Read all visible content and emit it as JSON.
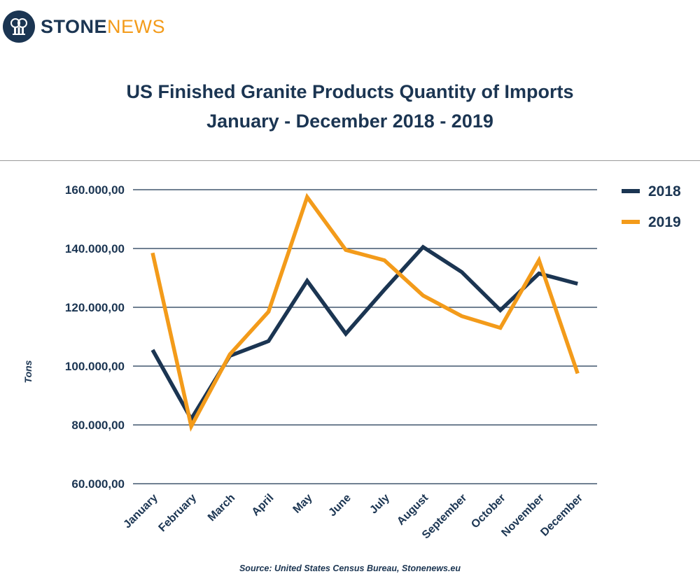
{
  "brand": {
    "logo_part1": "STONE",
    "logo_part2": "NEWS",
    "colors": {
      "navy": "#1b3552",
      "orange": "#f39b1a"
    }
  },
  "header": {
    "title_line1": "US Finished Granite Products Quantity of Imports",
    "title_line2": "January - December 2018 - 2019"
  },
  "footer": {
    "source": "Source: United States Census Bureau, Stonenews.eu"
  },
  "chart_data": {
    "type": "line",
    "title": "US Finished Granite Products Quantity of Imports January - December 2018 - 2019",
    "xlabel": "",
    "ylabel": "Tons",
    "categories": [
      "January",
      "February",
      "March",
      "April",
      "May",
      "June",
      "July",
      "August",
      "September",
      "October",
      "November",
      "December"
    ],
    "ylim": [
      60000,
      160000
    ],
    "yticks": [
      60000,
      80000,
      100000,
      120000,
      140000,
      160000
    ],
    "ytick_labels": [
      "60.000,00",
      "80.000,00",
      "100.000,00",
      "120.000,00",
      "140.000,00",
      "160.000,00"
    ],
    "grid": true,
    "legend_position": "top-right",
    "series": [
      {
        "name": "2018",
        "color": "#1b3552",
        "values": [
          105500,
          82000,
          103500,
          108500,
          129000,
          111000,
          126000,
          140500,
          132000,
          119000,
          131500,
          128000
        ]
      },
      {
        "name": "2019",
        "color": "#f39b1a",
        "values": [
          138500,
          79500,
          104000,
          118500,
          157500,
          139500,
          136000,
          124000,
          117000,
          113000,
          136000,
          97500
        ]
      }
    ]
  }
}
